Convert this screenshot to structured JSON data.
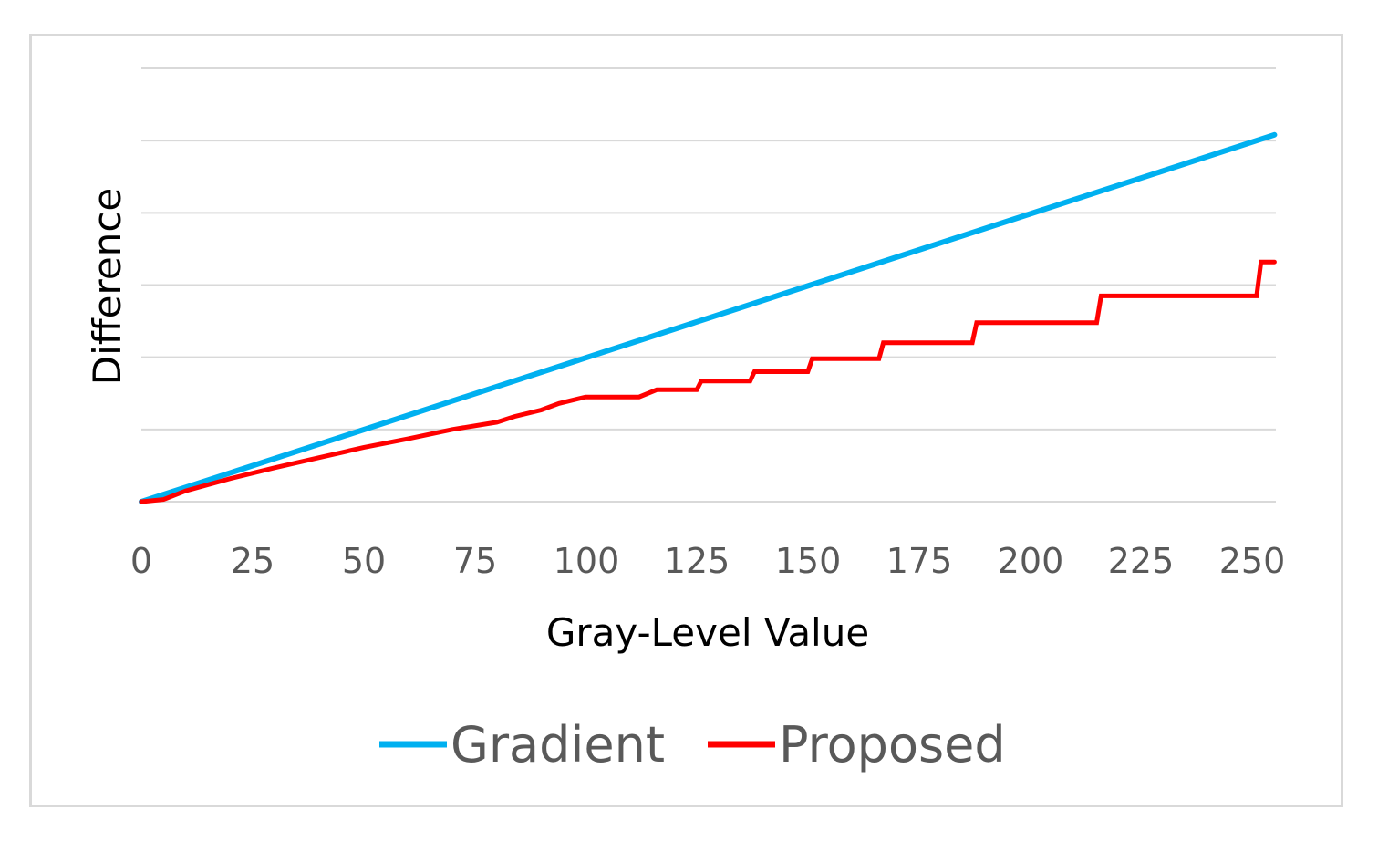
{
  "chart_data": {
    "type": "line",
    "title": "",
    "xlabel": "Gray-Level Value",
    "ylabel": "Difference",
    "xlim": [
      0,
      255
    ],
    "ylim": [
      0,
      6
    ],
    "x_ticks": [
      0,
      25,
      50,
      75,
      100,
      125,
      150,
      175,
      200,
      225,
      250
    ],
    "y_ticks_labeled": false,
    "grid": true,
    "legend_position": "bottom",
    "series": [
      {
        "name": "Gradient",
        "color": "#00b0f0",
        "style": "line",
        "x": [
          0,
          255
        ],
        "y": [
          0,
          5.08
        ]
      },
      {
        "name": "Proposed",
        "color": "#ff0000",
        "style": "step",
        "x": [
          0,
          5,
          10,
          20,
          30,
          40,
          50,
          60,
          70,
          80,
          84,
          90,
          94,
          100,
          104,
          108,
          112,
          116,
          120,
          125,
          126,
          130,
          137,
          138,
          150,
          151,
          166,
          167,
          187,
          188,
          215,
          216,
          251,
          252,
          255
        ],
        "y": [
          0,
          0.03,
          0.15,
          0.32,
          0.47,
          0.61,
          0.75,
          0.87,
          1.0,
          1.1,
          1.18,
          1.27,
          1.36,
          1.45,
          1.45,
          1.45,
          1.45,
          1.55,
          1.55,
          1.55,
          1.67,
          1.67,
          1.67,
          1.8,
          1.8,
          1.98,
          1.98,
          2.2,
          2.2,
          2.48,
          2.48,
          2.85,
          2.85,
          3.32,
          3.32
        ]
      }
    ]
  }
}
